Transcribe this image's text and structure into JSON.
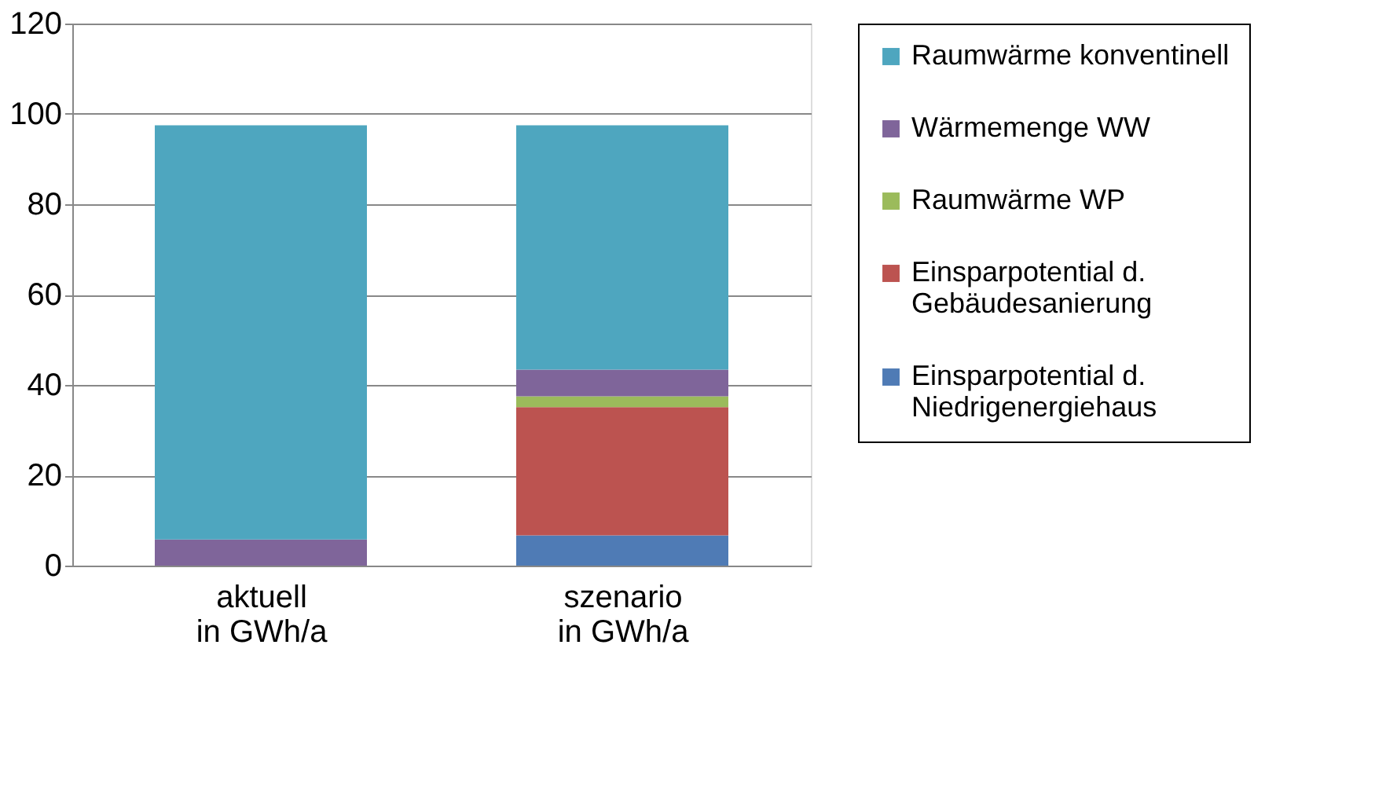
{
  "chart_data": {
    "type": "bar",
    "stacked": true,
    "categories": [
      "aktuell\nin GWh/a",
      "szenario\nin GWh/a"
    ],
    "series": [
      {
        "name": "Einsparpotential d.\nNiedrigenergiehaus",
        "color": "#4f7bb5",
        "values": [
          0,
          6.7
        ]
      },
      {
        "name": "Einsparpotential d.\nGebäudesanierung",
        "color": "#bc5350",
        "values": [
          0,
          28.4
        ]
      },
      {
        "name": "Raumwärme WP",
        "color": "#9bbb5b",
        "values": [
          0,
          2.4
        ]
      },
      {
        "name": "Wärmemenge WW",
        "color": "#7f659a",
        "values": [
          5.8,
          5.9
        ]
      },
      {
        "name": "Raumwärme konventinell",
        "color": "#4ea6bf",
        "values": [
          91.7,
          54.1
        ]
      }
    ],
    "ylim": [
      0,
      120
    ],
    "yticks": [
      0,
      20,
      40,
      60,
      80,
      100,
      120
    ],
    "grid": "y",
    "legend": "right"
  }
}
